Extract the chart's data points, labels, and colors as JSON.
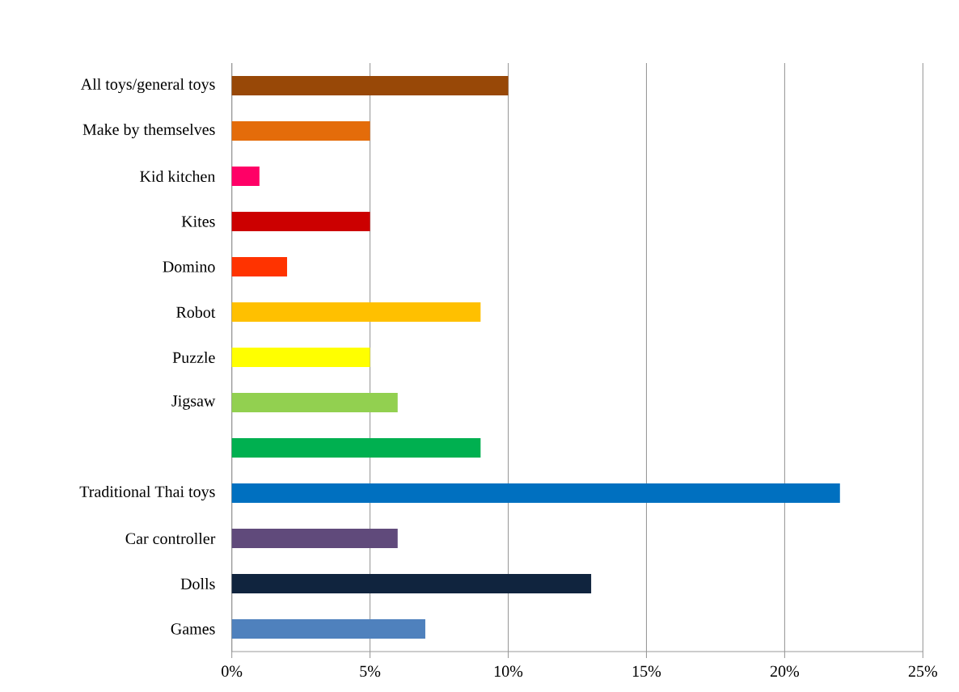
{
  "chart_data": {
    "type": "bar",
    "orientation": "horizontal",
    "categories": [
      "All toys/general toys",
      "Make by themselves",
      "Kid kitchen",
      "Kites",
      "Domino",
      "Robot",
      "Puzzle",
      "Jigsaw",
      null,
      "Traditional Thai toys",
      "Car controller",
      "Dolls",
      "Games"
    ],
    "values": [
      10,
      5,
      1,
      5,
      2,
      9,
      5,
      6,
      9,
      22,
      6,
      13,
      7
    ],
    "colors": [
      "#984807",
      "#e46c0a",
      "#ff0066",
      "#cc0000",
      "#ff3300",
      "#ffc000",
      "#ffff00",
      "#92d050",
      "#00b050",
      "#0070c0",
      "#604a7b",
      "#10243e",
      "#4f81bd"
    ],
    "xlim": [
      0,
      25
    ],
    "xticks": [
      {
        "value": 0,
        "label": "0%"
      },
      {
        "value": 5,
        "label": "5%"
      },
      {
        "value": 10,
        "label": "10%"
      },
      {
        "value": 15,
        "label": "15%"
      },
      {
        "value": 20,
        "label": "20%"
      },
      {
        "value": 25,
        "label": "25%"
      }
    ],
    "grid": "x"
  }
}
